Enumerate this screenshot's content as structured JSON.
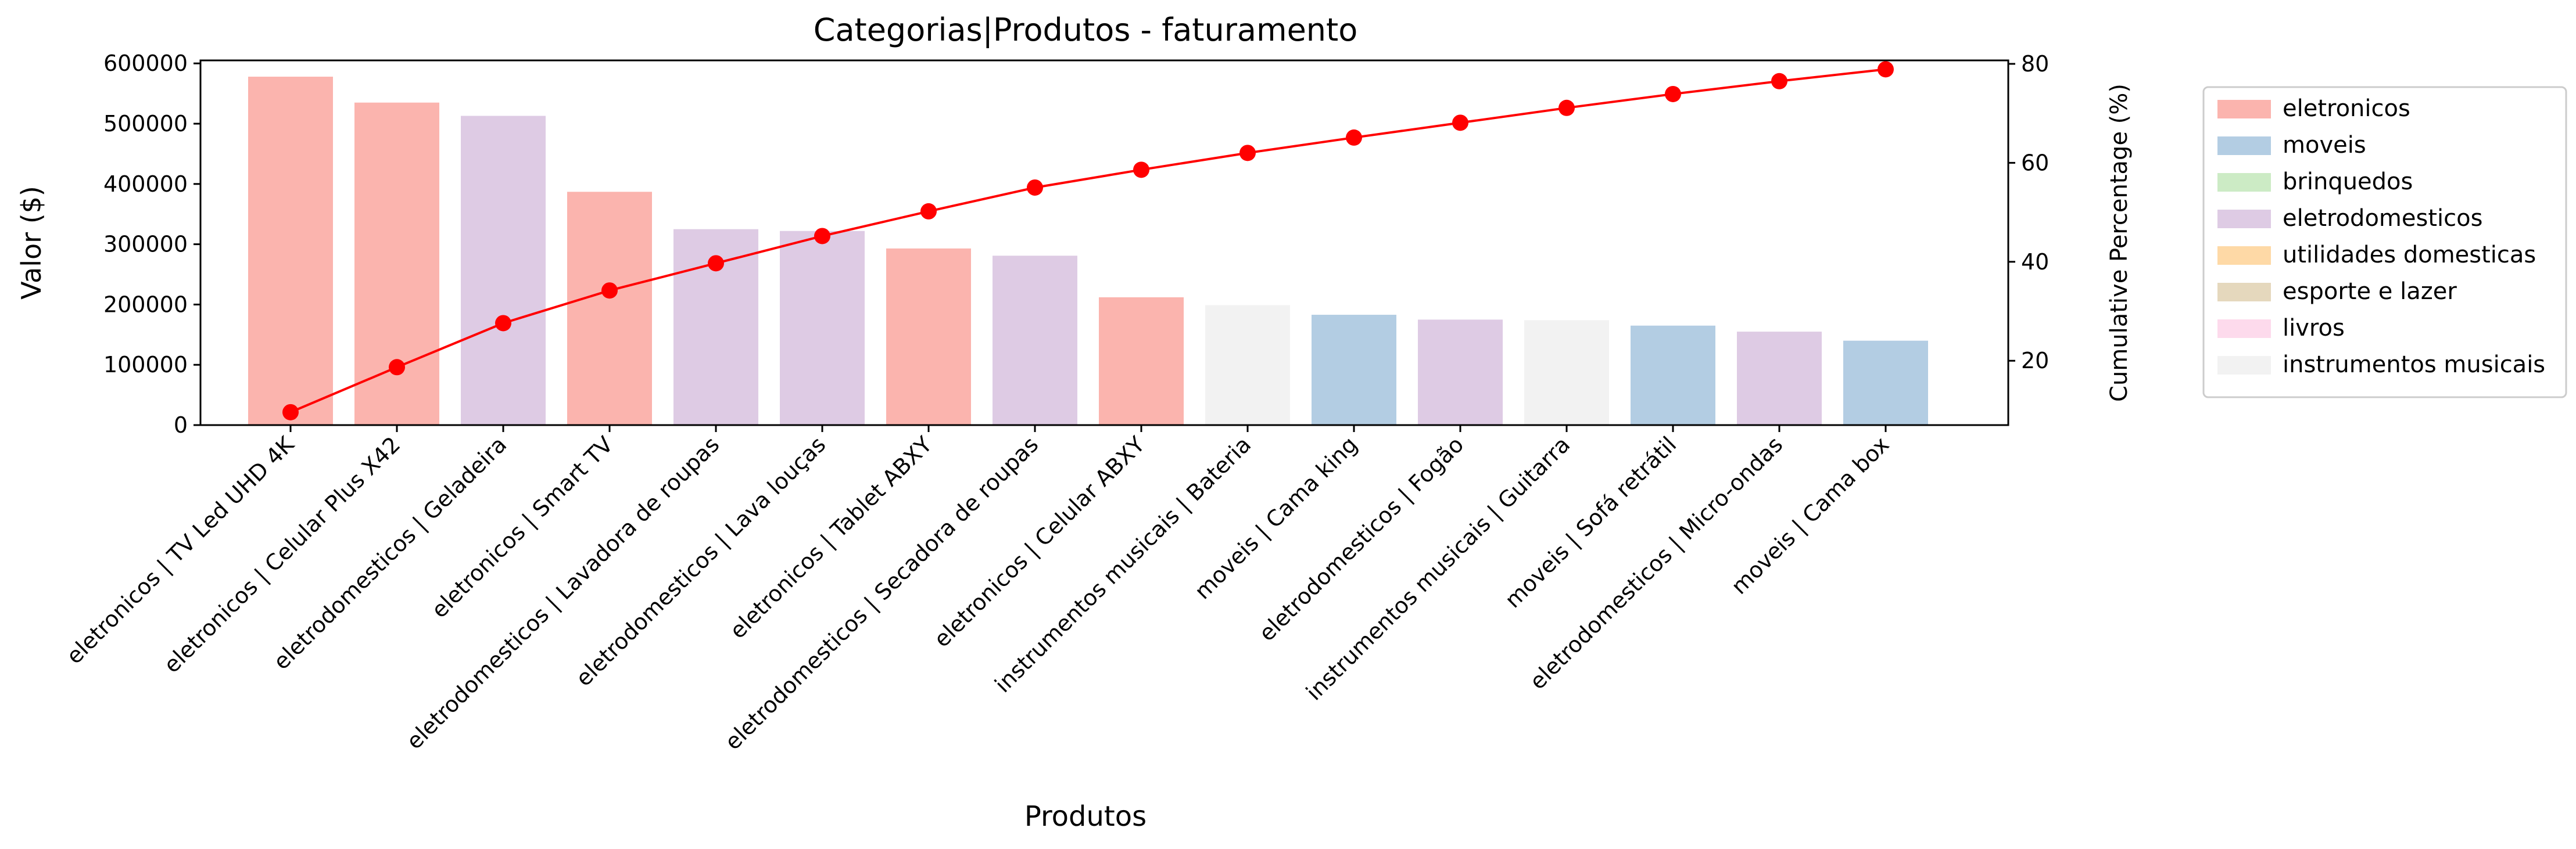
{
  "chart_data": {
    "type": "bar",
    "title": "Categorias|Produtos - faturamento",
    "xlabel": "Produtos",
    "ylabel": "Valor ($)",
    "y2label": "Cumulative Percentage (%)",
    "ylim": [
      0,
      605000
    ],
    "y2lim": [
      7,
      80.7
    ],
    "yticks": [
      0,
      100000,
      200000,
      300000,
      400000,
      500000,
      600000
    ],
    "y2ticks": [
      20,
      40,
      60,
      80
    ],
    "grid": false,
    "legend_position": "right, outside",
    "categories": [
      "eletronicos | TV Led UHD 4K",
      "eletronicos | Celular Plus X42",
      "eletrodomesticos | Geladeira",
      "eletronicos | Smart TV",
      "eletrodomesticos | Lavadora de roupas",
      "eletrodomesticos | Lava louças",
      "eletronicos | Tablet ABXY",
      "eletrodomesticos | Secadora de roupas",
      "eletronicos | Celular ABXY",
      "instrumentos musicais | Bateria",
      "moveis | Cama king",
      "eletrodomesticos | Fogão",
      "instrumentos musicais | Guitarra",
      "moveis | Sofá retrátil",
      "eletrodomesticos | Micro-ondas",
      "moveis | Cama box"
    ],
    "bar_category": [
      "eletronicos",
      "eletronicos",
      "eletrodomesticos",
      "eletronicos",
      "eletrodomesticos",
      "eletrodomesticos",
      "eletronicos",
      "eletrodomesticos",
      "eletronicos",
      "instrumentos musicais",
      "moveis",
      "eletrodomesticos",
      "instrumentos musicais",
      "moveis",
      "eletrodomesticos",
      "moveis"
    ],
    "values": [
      578000,
      535000,
      513000,
      387000,
      325000,
      322000,
      293000,
      281000,
      212000,
      199000,
      183000,
      175000,
      174000,
      165000,
      155000,
      140000
    ],
    "cumulative_percentage": [
      9.6,
      18.7,
      27.6,
      34.2,
      39.7,
      45.2,
      50.2,
      55.0,
      58.6,
      62.0,
      65.1,
      68.1,
      71.1,
      73.9,
      76.5,
      78.9
    ],
    "cumulative_color": "#ff0000",
    "legend": [
      {
        "label": "eletronicos",
        "color": "#fbb4ae"
      },
      {
        "label": "moveis",
        "color": "#b3cde3"
      },
      {
        "label": "brinquedos",
        "color": "#ccebc5"
      },
      {
        "label": "eletrodomesticos",
        "color": "#decbe4"
      },
      {
        "label": "utilidades domesticas",
        "color": "#fed9a6"
      },
      {
        "label": "esporte e lazer",
        "color": "#e5d8bd"
      },
      {
        "label": "livros",
        "color": "#fddaec"
      },
      {
        "label": "instrumentos musicais",
        "color": "#f2f2f2"
      }
    ]
  }
}
